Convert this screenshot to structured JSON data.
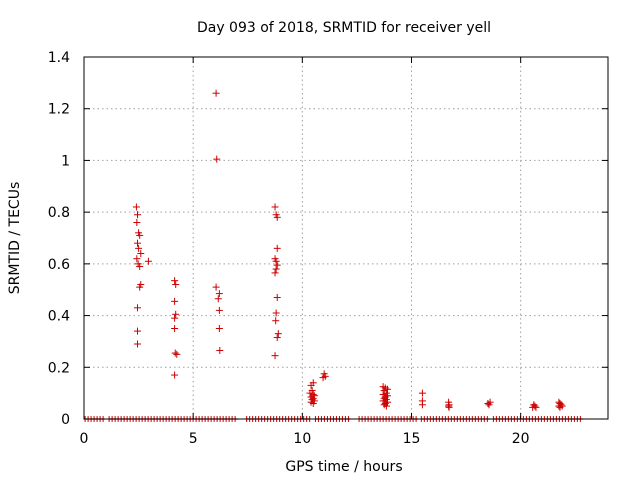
{
  "chart_data": {
    "type": "scatter",
    "title": "Day 093 of 2018, SRMTID for receiver yell",
    "xlabel": "GPS time / hours",
    "ylabel": "SRMTID / TECUs",
    "xlim": [
      0,
      24
    ],
    "ylim": [
      0,
      1.4
    ],
    "xticks": [
      0,
      5,
      10,
      15,
      20
    ],
    "xtick_labels": [
      "0",
      "5",
      "10",
      "15",
      "20"
    ],
    "yticks": [
      0,
      0.2,
      0.4,
      0.6,
      0.8,
      1.0,
      1.2,
      1.4
    ],
    "ytick_labels": [
      "0",
      "0.2",
      "0.4",
      "0.6",
      "0.8",
      "1",
      "1.2",
      "1.4"
    ],
    "grid": true,
    "marker": "+",
    "colors": {
      "points": "#cc0000",
      "grid": "#a0a0a0",
      "axes": "#000000"
    },
    "zero_baseline_segments": [
      [
        0.05,
        0.95
      ],
      [
        1.15,
        7.05
      ],
      [
        7.45,
        10.35
      ],
      [
        10.6,
        12.2
      ],
      [
        12.6,
        15.3
      ],
      [
        15.45,
        18.6
      ],
      [
        18.75,
        22.85
      ]
    ],
    "series": [
      {
        "name": "SRMTID",
        "points": [
          [
            2.4,
            0.82
          ],
          [
            2.45,
            0.79
          ],
          [
            2.42,
            0.76
          ],
          [
            2.5,
            0.72
          ],
          [
            2.55,
            0.71
          ],
          [
            2.45,
            0.68
          ],
          [
            2.5,
            0.66
          ],
          [
            2.6,
            0.64
          ],
          [
            2.42,
            0.62
          ],
          [
            2.48,
            0.6
          ],
          [
            2.55,
            0.59
          ],
          [
            2.6,
            0.52
          ],
          [
            2.55,
            0.51
          ],
          [
            2.45,
            0.43
          ],
          [
            2.45,
            0.34
          ],
          [
            2.45,
            0.29
          ],
          [
            2.95,
            0.61
          ],
          [
            4.15,
            0.535
          ],
          [
            4.2,
            0.52
          ],
          [
            4.15,
            0.455
          ],
          [
            4.2,
            0.405
          ],
          [
            4.15,
            0.39
          ],
          [
            4.15,
            0.35
          ],
          [
            4.18,
            0.255
          ],
          [
            4.25,
            0.25
          ],
          [
            4.15,
            0.17
          ],
          [
            6.05,
            1.26
          ],
          [
            6.08,
            1.005
          ],
          [
            6.05,
            0.51
          ],
          [
            6.2,
            0.485
          ],
          [
            6.15,
            0.465
          ],
          [
            6.2,
            0.42
          ],
          [
            6.2,
            0.35
          ],
          [
            6.22,
            0.265
          ],
          [
            8.75,
            0.82
          ],
          [
            8.8,
            0.79
          ],
          [
            8.85,
            0.78
          ],
          [
            8.85,
            0.66
          ],
          [
            8.75,
            0.62
          ],
          [
            8.8,
            0.61
          ],
          [
            8.85,
            0.595
          ],
          [
            8.8,
            0.58
          ],
          [
            8.75,
            0.565
          ],
          [
            8.85,
            0.47
          ],
          [
            8.8,
            0.41
          ],
          [
            8.78,
            0.38
          ],
          [
            8.9,
            0.33
          ],
          [
            8.85,
            0.315
          ],
          [
            8.75,
            0.245
          ],
          [
            10.4,
            0.13
          ],
          [
            10.5,
            0.14
          ],
          [
            10.45,
            0.11
          ],
          [
            10.35,
            0.1
          ],
          [
            10.5,
            0.095
          ],
          [
            10.55,
            0.09
          ],
          [
            10.4,
            0.085
          ],
          [
            10.5,
            0.08
          ],
          [
            10.45,
            0.075
          ],
          [
            10.55,
            0.07
          ],
          [
            10.4,
            0.065
          ],
          [
            10.5,
            0.06
          ],
          [
            11.0,
            0.175
          ],
          [
            11.05,
            0.165
          ],
          [
            10.95,
            0.16
          ],
          [
            13.7,
            0.125
          ],
          [
            13.8,
            0.12
          ],
          [
            13.9,
            0.115
          ],
          [
            13.75,
            0.11
          ],
          [
            13.85,
            0.1
          ],
          [
            13.7,
            0.095
          ],
          [
            13.9,
            0.09
          ],
          [
            13.8,
            0.085
          ],
          [
            13.75,
            0.08
          ],
          [
            13.85,
            0.075
          ],
          [
            13.7,
            0.07
          ],
          [
            13.9,
            0.065
          ],
          [
            13.8,
            0.06
          ],
          [
            13.75,
            0.055
          ],
          [
            13.85,
            0.05
          ],
          [
            15.5,
            0.1
          ],
          [
            15.5,
            0.07
          ],
          [
            15.5,
            0.055
          ],
          [
            16.7,
            0.065
          ],
          [
            16.72,
            0.055
          ],
          [
            16.7,
            0.05
          ],
          [
            16.72,
            0.045
          ],
          [
            18.5,
            0.06
          ],
          [
            18.55,
            0.055
          ],
          [
            18.6,
            0.065
          ],
          [
            20.6,
            0.055
          ],
          [
            20.65,
            0.05
          ],
          [
            20.55,
            0.045
          ],
          [
            20.7,
            0.045
          ],
          [
            21.75,
            0.065
          ],
          [
            21.8,
            0.06
          ],
          [
            21.85,
            0.055
          ],
          [
            21.75,
            0.05
          ],
          [
            21.8,
            0.045
          ],
          [
            21.9,
            0.05
          ]
        ]
      }
    ]
  }
}
